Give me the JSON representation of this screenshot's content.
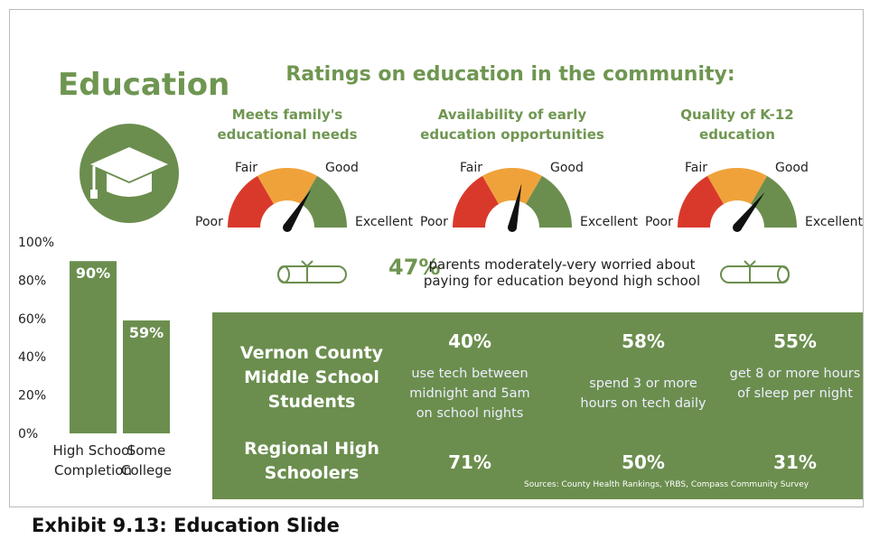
{
  "title": "Education",
  "ratings": {
    "title": "Ratings on education in the community:",
    "scale": [
      "Poor",
      "Fair",
      "Good",
      "Excellent"
    ],
    "gauges": [
      {
        "label": "Meets family's educational needs"
      },
      {
        "label": "Availability of early education opportunities"
      },
      {
        "label": "Quality of K-12 education"
      }
    ]
  },
  "chart_data": {
    "type": "bar",
    "categories": [
      "High School Completion",
      "Some College"
    ],
    "values": [
      90,
      59
    ],
    "value_labels": [
      "90%",
      "59%"
    ],
    "color": "#6b8e4e",
    "ylim": [
      0,
      100
    ],
    "yticks": [
      {
        "value": 0,
        "label": "0%"
      },
      {
        "value": 20,
        "label": "20%"
      },
      {
        "value": 40,
        "label": "40%"
      },
      {
        "value": 60,
        "label": "60%"
      },
      {
        "value": 80,
        "label": "80%"
      },
      {
        "value": 100,
        "label": "100%"
      }
    ]
  },
  "worry": {
    "percent": "47%",
    "text": "parents moderately-very worried about paying for education beyond high school"
  },
  "table": {
    "rows": [
      {
        "group": "Vernon County Middle School Students",
        "cells": [
          {
            "percent": "40%",
            "text": "use tech between midnight and 5am on school nights"
          },
          {
            "percent": "58%",
            "text": "spend 3 or more hours on tech daily"
          },
          {
            "percent": "55%",
            "text": "get 8 or more hours of sleep per night"
          }
        ]
      },
      {
        "group": "Regional High Schoolers",
        "cells": [
          {
            "percent": "71%"
          },
          {
            "percent": "50%"
          },
          {
            "percent": "31%"
          }
        ]
      }
    ],
    "sources": "Sources: County Health Rankings, YRBS, Compass Community Survey"
  },
  "caption": "Exhibit 9.13: Education Slide"
}
